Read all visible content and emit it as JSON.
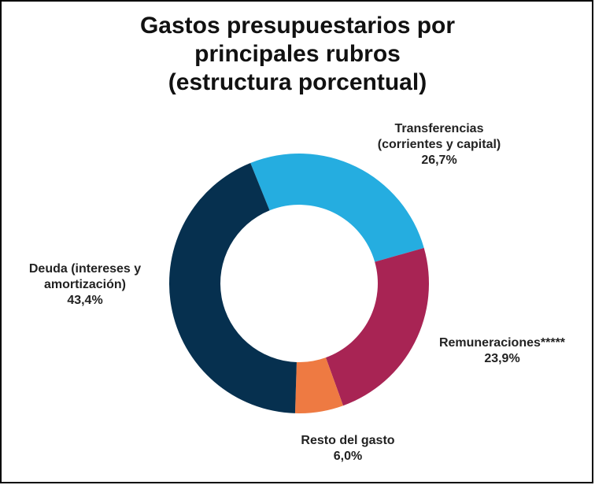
{
  "chart_data": {
    "type": "donut",
    "title": "Gastos presupuestarios por\nprincipales rubros\n(estructura porcentual)",
    "categories": [
      "Transferencias\n(corrientes y capital)",
      "Remuneraciones*****",
      "Resto del gasto",
      "Deuda (intereses y\namortización)"
    ],
    "values": [
      26.7,
      23.9,
      6.0,
      43.4
    ],
    "value_labels": [
      "26,7%",
      "23,9%",
      "6,0%",
      "43,4%"
    ],
    "colors": [
      "#25ade0",
      "#a82454",
      "#ee7a42",
      "#06304f"
    ]
  }
}
